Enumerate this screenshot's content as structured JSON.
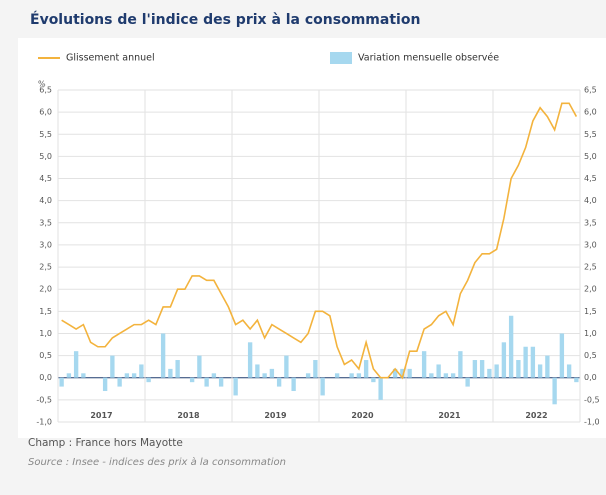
{
  "chart_data": {
    "type": "bar-line",
    "title": "Évolutions de l'indice des prix à la consommation",
    "y_unit": "%",
    "categories": [
      "2017",
      null,
      null,
      null,
      null,
      null,
      null,
      null,
      null,
      null,
      null,
      null,
      "2018",
      null,
      null,
      null,
      null,
      null,
      null,
      null,
      null,
      null,
      null,
      null,
      "2019",
      null,
      null,
      null,
      null,
      null,
      null,
      null,
      null,
      null,
      null,
      null,
      "2020",
      null,
      null,
      null,
      null,
      null,
      null,
      null,
      null,
      null,
      null,
      null,
      "2021",
      null,
      null,
      null,
      null,
      null,
      null,
      null,
      null,
      null,
      null,
      null,
      "2022",
      null,
      null,
      null,
      null,
      null,
      null,
      null,
      null,
      null,
      null,
      null
    ],
    "series": [
      {
        "name": "Glissement annuel",
        "type": "line",
        "color": "#f3b33d",
        "values": [
          1.3,
          1.2,
          1.1,
          1.2,
          0.8,
          0.7,
          0.7,
          0.9,
          1.0,
          1.1,
          1.2,
          1.2,
          1.3,
          1.2,
          1.6,
          1.6,
          2.0,
          2.0,
          2.3,
          2.3,
          2.2,
          2.2,
          1.9,
          1.6,
          1.2,
          1.3,
          1.1,
          1.3,
          0.9,
          1.2,
          1.1,
          1.0,
          0.9,
          0.8,
          1.0,
          1.5,
          1.5,
          1.4,
          0.7,
          0.3,
          0.4,
          0.2,
          0.8,
          0.2,
          0.0,
          0.0,
          0.2,
          0.0,
          0.6,
          0.6,
          1.1,
          1.2,
          1.4,
          1.5,
          1.2,
          1.9,
          2.2,
          2.6,
          2.8,
          2.8,
          2.9,
          3.6,
          4.5,
          4.8,
          5.2,
          5.8,
          6.1,
          5.9,
          5.6,
          6.2,
          6.2,
          5.9
        ]
      },
      {
        "name": "Variation mensuelle observée",
        "type": "bar",
        "color": "#a6d8ef",
        "values": [
          -0.2,
          0.1,
          0.6,
          0.1,
          0.0,
          0.0,
          -0.3,
          0.5,
          -0.2,
          0.1,
          0.1,
          0.3,
          -0.1,
          0.0,
          1.0,
          0.2,
          0.4,
          0.0,
          -0.1,
          0.5,
          -0.2,
          0.1,
          -0.2,
          0.0,
          -0.4,
          0.0,
          0.8,
          0.3,
          0.1,
          0.2,
          -0.2,
          0.5,
          -0.3,
          0.0,
          0.1,
          0.4,
          -0.4,
          0.0,
          0.1,
          0.0,
          0.1,
          0.1,
          0.4,
          -0.1,
          -0.5,
          0.0,
          0.2,
          0.2,
          0.2,
          0.0,
          0.6,
          0.1,
          0.3,
          0.1,
          0.1,
          0.6,
          -0.2,
          0.4,
          0.4,
          0.2,
          0.3,
          0.8,
          1.4,
          0.4,
          0.7,
          0.7,
          0.3,
          0.5,
          -0.6,
          1.0,
          0.3,
          -0.1
        ]
      }
    ],
    "ylim": [
      -1,
      6.5
    ],
    "yticks": [
      {
        "value": -1,
        "label": "-1,0"
      },
      {
        "value": -0.5,
        "label": "-0,5"
      },
      {
        "value": 0,
        "label": "0,0"
      },
      {
        "value": 0.5,
        "label": "0,5"
      },
      {
        "value": 1,
        "label": "1,0"
      },
      {
        "value": 1.5,
        "label": "1,5"
      },
      {
        "value": 2,
        "label": "2,0"
      },
      {
        "value": 2.5,
        "label": "2,5"
      },
      {
        "value": 3,
        "label": "3,0"
      },
      {
        "value": 3.5,
        "label": "3,5"
      },
      {
        "value": 4,
        "label": "4,0"
      },
      {
        "value": 4.5,
        "label": "4,5"
      },
      {
        "value": 5,
        "label": "5,0"
      },
      {
        "value": 5.5,
        "label": "5,5"
      },
      {
        "value": 6,
        "label": "6,0"
      },
      {
        "value": 6.5,
        "label": "6,5"
      }
    ],
    "grid": true,
    "note": "Champ : France hors Mayotte",
    "source": "Source : Insee - indices des prix à la consommation"
  }
}
